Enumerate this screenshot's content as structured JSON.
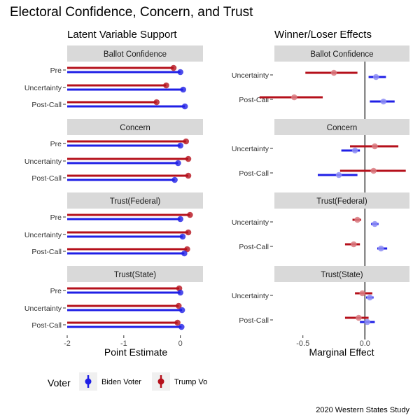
{
  "title": "Electoral Confidence, Concern, and Trust",
  "caption": "2020 Western States Study",
  "colors": {
    "biden": "#1f1fe6",
    "trump": "#b5101b",
    "strip": "#d9d9d9"
  },
  "legend": {
    "title": "Voter",
    "items": [
      "Biden Voter",
      "Trump Vo"
    ]
  },
  "chart_data": [
    {
      "type": "bar",
      "title": "Latent Variable Support",
      "xlabel": "Point Estimate",
      "xlim": [
        -2,
        0.4
      ],
      "xticks": [
        -2,
        -1,
        0
      ],
      "xtick_labels": [
        "-2",
        "-1",
        "0"
      ],
      "panels": [
        {
          "label": "Ballot Confidence",
          "categories": [
            "Pre",
            "Uncertainty",
            "Post-Call"
          ],
          "series": [
            {
              "name": "Trump Voter",
              "values": [
                -0.12,
                -0.25,
                -0.42
              ]
            },
            {
              "name": "Biden Voter",
              "values": [
                0.0,
                0.05,
                0.08
              ]
            }
          ]
        },
        {
          "label": "Concern",
          "categories": [
            "Pre",
            "Uncertainty",
            "Post-Call"
          ],
          "series": [
            {
              "name": "Trump Voter",
              "values": [
                0.1,
                0.14,
                0.14
              ]
            },
            {
              "name": "Biden Voter",
              "values": [
                0.0,
                -0.04,
                -0.1
              ]
            }
          ]
        },
        {
          "label": "Trust(Federal)",
          "categories": [
            "Pre",
            "Uncertainty",
            "Post-Call"
          ],
          "series": [
            {
              "name": "Trump Voter",
              "values": [
                0.17,
                0.14,
                0.12
              ]
            },
            {
              "name": "Biden Voter",
              "values": [
                0.0,
                0.04,
                0.07
              ]
            }
          ]
        },
        {
          "label": "Trust(State)",
          "categories": [
            "Pre",
            "Uncertainty",
            "Post-Call"
          ],
          "series": [
            {
              "name": "Trump Voter",
              "values": [
                -0.02,
                -0.03,
                -0.05
              ]
            },
            {
              "name": "Biden Voter",
              "values": [
                0.0,
                0.03,
                0.02
              ]
            }
          ]
        }
      ]
    },
    {
      "type": "scatter",
      "title": "Winner/Loser Effects",
      "xlabel": "Marginal Effect",
      "xlim": [
        -0.73,
        0.36
      ],
      "xticks": [
        -0.5,
        0.0
      ],
      "xtick_labels": [
        "-0.5",
        "0.0"
      ],
      "reference_line": 0,
      "panels": [
        {
          "label": "Ballot Confidence",
          "categories": [
            "Uncertainty",
            "Post-Call"
          ],
          "series": [
            {
              "name": "Trump Voter",
              "estimates": [
                -0.25,
                -0.57
              ],
              "lower": [
                -0.48,
                -0.85
              ],
              "upper": [
                -0.06,
                -0.34
              ]
            },
            {
              "name": "Biden Voter",
              "estimates": [
                0.09,
                0.15
              ],
              "lower": [
                0.03,
                0.04
              ],
              "upper": [
                0.17,
                0.24
              ]
            }
          ]
        },
        {
          "label": "Concern",
          "categories": [
            "Uncertainty",
            "Post-Call"
          ],
          "series": [
            {
              "name": "Trump Voter",
              "estimates": [
                0.08,
                0.07
              ],
              "lower": [
                -0.12,
                -0.2
              ],
              "upper": [
                0.27,
                0.33
              ]
            },
            {
              "name": "Biden Voter",
              "estimates": [
                -0.08,
                -0.21
              ],
              "lower": [
                -0.19,
                -0.38
              ],
              "upper": [
                -0.04,
                -0.06
              ]
            }
          ]
        },
        {
          "label": "Trust(Federal)",
          "categories": [
            "Uncertainty",
            "Post-Call"
          ],
          "series": [
            {
              "name": "Trump Voter",
              "estimates": [
                -0.06,
                -0.09
              ],
              "lower": [
                -0.1,
                -0.16
              ],
              "upper": [
                -0.03,
                -0.04
              ]
            },
            {
              "name": "Biden Voter",
              "estimates": [
                0.08,
                0.13
              ],
              "lower": [
                0.05,
                0.1
              ],
              "upper": [
                0.11,
                0.18
              ]
            }
          ]
        },
        {
          "label": "Trust(State)",
          "categories": [
            "Uncertainty",
            "Post-Call"
          ],
          "series": [
            {
              "name": "Trump Voter",
              "estimates": [
                -0.02,
                -0.05
              ],
              "lower": [
                -0.08,
                -0.16
              ],
              "upper": [
                0.06,
                0.03
              ]
            },
            {
              "name": "Biden Voter",
              "estimates": [
                0.04,
                0.02
              ],
              "lower": [
                0.01,
                -0.04
              ],
              "upper": [
                0.07,
                0.08
              ]
            }
          ]
        }
      ]
    }
  ]
}
